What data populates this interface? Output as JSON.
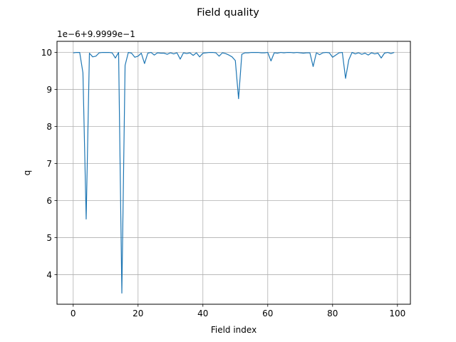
{
  "figure": {
    "title": "Field quality",
    "offset_label": "1e−6+9.9999e−1"
  },
  "colors": {
    "line": "#1f77b4",
    "grid": "#b0b0b0",
    "axes": "#000000",
    "background": "#ffffff"
  },
  "chart_data": {
    "type": "line",
    "title": "Field quality",
    "xlabel": "Field index",
    "ylabel": "q",
    "offset_text": "1e−6+9.9999e−1",
    "grid": true,
    "xlim": [
      -5,
      104
    ],
    "ylim": [
      3.2,
      10.3
    ],
    "x_ticks": [
      0,
      20,
      40,
      60,
      80,
      100
    ],
    "x_tick_labels": [
      "0",
      "20",
      "40",
      "60",
      "80",
      "100"
    ],
    "y_ticks": [
      4,
      5,
      6,
      7,
      8,
      9,
      10
    ],
    "y_tick_labels": [
      "4",
      "5",
      "6",
      "7",
      "8",
      "9",
      "10"
    ],
    "x": [
      0,
      1,
      2,
      3,
      4,
      5,
      6,
      7,
      8,
      9,
      10,
      11,
      12,
      13,
      14,
      15,
      16,
      17,
      18,
      19,
      20,
      21,
      22,
      23,
      24,
      25,
      26,
      27,
      28,
      29,
      30,
      31,
      32,
      33,
      34,
      35,
      36,
      37,
      38,
      39,
      40,
      41,
      42,
      43,
      44,
      45,
      46,
      47,
      48,
      49,
      50,
      51,
      52,
      53,
      54,
      55,
      56,
      57,
      58,
      59,
      60,
      61,
      62,
      63,
      64,
      65,
      66,
      67,
      68,
      69,
      70,
      71,
      72,
      73,
      74,
      75,
      76,
      77,
      78,
      79,
      80,
      81,
      82,
      83,
      84,
      85,
      86,
      87,
      88,
      89,
      90,
      91,
      92,
      93,
      94,
      95,
      96,
      97,
      98,
      99
    ],
    "series": [
      {
        "values": [
          9.99,
          10.0,
          10.0,
          9.45,
          5.5,
          9.98,
          9.88,
          9.9,
          9.99,
          10.0,
          10.0,
          10.0,
          9.99,
          9.85,
          10.0,
          3.5,
          9.65,
          10.0,
          9.98,
          9.87,
          9.9,
          9.98,
          9.7,
          9.98,
          10.0,
          9.93,
          9.99,
          9.98,
          9.98,
          9.95,
          9.99,
          9.96,
          9.99,
          9.82,
          9.99,
          9.97,
          9.99,
          9.92,
          9.99,
          9.88,
          9.98,
          9.99,
          10.0,
          10.0,
          9.99,
          9.9,
          9.99,
          9.97,
          9.93,
          9.88,
          9.78,
          8.75,
          9.95,
          9.99,
          9.99,
          10.0,
          10.0,
          10.0,
          9.99,
          9.99,
          10.0,
          9.77,
          9.99,
          9.98,
          10.0,
          9.99,
          10.0,
          10.0,
          9.99,
          10.0,
          9.99,
          9.98,
          9.99,
          9.99,
          9.62,
          9.99,
          9.94,
          9.99,
          10.0,
          9.99,
          9.87,
          9.93,
          9.99,
          10.0,
          9.3,
          9.8,
          10.0,
          9.96,
          9.99,
          9.95,
          9.98,
          9.93,
          9.99,
          9.96,
          9.98,
          9.85,
          9.98,
          10.0,
          9.97,
          10.0
        ]
      }
    ]
  }
}
